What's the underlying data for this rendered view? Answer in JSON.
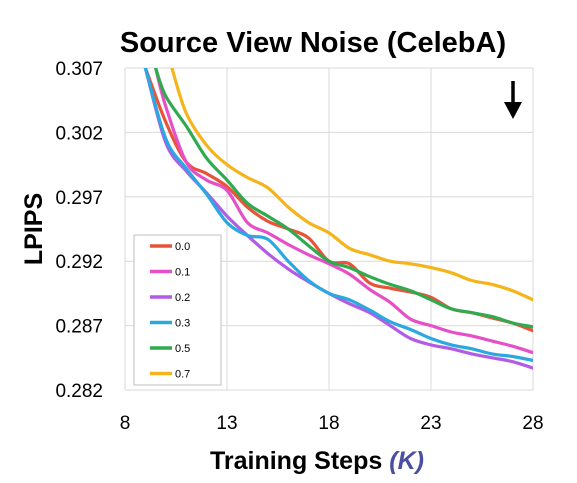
{
  "chart_data": {
    "type": "line",
    "title": "Source View Noise (CelebA)",
    "xlabel": "Training Steps",
    "xlabel_unit": "(K)",
    "ylabel": "LPIPS",
    "xlim": [
      8,
      28
    ],
    "ylim": [
      0.282,
      0.307
    ],
    "xticks": [
      "8",
      "13",
      "18",
      "23",
      "28"
    ],
    "yticks": [
      "0.307",
      "0.302",
      "0.297",
      "0.292",
      "0.287",
      "0.282"
    ],
    "grid": true,
    "legend_position": "lower-left",
    "annotation_arrow": "down",
    "series": [
      {
        "name": "0.0",
        "color": "#e8533a",
        "x": [
          9.0,
          10,
          11,
          12,
          13,
          14,
          15,
          16,
          17,
          18,
          19,
          20,
          21,
          22,
          23,
          24,
          25,
          26,
          27,
          28
        ],
        "y": [
          0.307,
          0.3028,
          0.2997,
          0.2988,
          0.2978,
          0.2962,
          0.2951,
          0.2945,
          0.2938,
          0.292,
          0.2918,
          0.2903,
          0.2899,
          0.2896,
          0.2892,
          0.2883,
          0.288,
          0.2876,
          0.2872,
          0.2866
        ]
      },
      {
        "name": "0.1",
        "color": "#e650c6",
        "x": [
          9.5,
          10,
          11,
          12,
          13,
          14,
          15,
          16,
          17,
          18,
          19,
          20,
          21,
          22,
          23,
          24,
          25,
          26,
          27,
          28
        ],
        "y": [
          0.307,
          0.304,
          0.2997,
          0.2983,
          0.2975,
          0.295,
          0.2942,
          0.2933,
          0.2925,
          0.2918,
          0.291,
          0.2898,
          0.2888,
          0.2875,
          0.287,
          0.2865,
          0.2862,
          0.2858,
          0.2854,
          0.2849
        ]
      },
      {
        "name": "0.2",
        "color": "#b05ce6",
        "x": [
          9.0,
          10,
          11,
          12,
          13,
          14,
          15,
          16,
          17,
          18,
          19,
          20,
          21,
          22,
          23,
          24,
          25,
          26,
          27,
          28
        ],
        "y": [
          0.307,
          0.3012,
          0.299,
          0.2973,
          0.2955,
          0.294,
          0.2926,
          0.2914,
          0.2904,
          0.2895,
          0.2887,
          0.288,
          0.287,
          0.286,
          0.2855,
          0.2852,
          0.2848,
          0.2845,
          0.2842,
          0.2837
        ]
      },
      {
        "name": "0.3",
        "color": "#2aa8e0",
        "x": [
          9.0,
          10,
          11,
          12,
          13,
          14,
          15,
          16,
          17,
          18,
          19,
          20,
          21,
          22,
          23,
          24,
          25,
          26,
          27,
          28
        ],
        "y": [
          0.307,
          0.3015,
          0.2992,
          0.2972,
          0.295,
          0.294,
          0.2937,
          0.292,
          0.2905,
          0.2895,
          0.289,
          0.2882,
          0.2873,
          0.2867,
          0.286,
          0.2855,
          0.2852,
          0.2848,
          0.2846,
          0.2843
        ]
      },
      {
        "name": "0.5",
        "color": "#2faa4f",
        "x": [
          9.5,
          10,
          11,
          12,
          13,
          14,
          15,
          16,
          17,
          18,
          19,
          20,
          21,
          22,
          23,
          24,
          25,
          26,
          27,
          28
        ],
        "y": [
          0.307,
          0.3048,
          0.3025,
          0.3,
          0.2983,
          0.2965,
          0.2955,
          0.2945,
          0.2932,
          0.292,
          0.2915,
          0.2908,
          0.2902,
          0.2897,
          0.289,
          0.2883,
          0.288,
          0.2877,
          0.2872,
          0.2869
        ]
      },
      {
        "name": "0.7",
        "color": "#f4b41a",
        "x": [
          10.3,
          11,
          12,
          13,
          14,
          15,
          16,
          17,
          18,
          19,
          20,
          21,
          22,
          23,
          24,
          25,
          26,
          27,
          28
        ],
        "y": [
          0.307,
          0.3035,
          0.301,
          0.2995,
          0.2985,
          0.2977,
          0.2962,
          0.295,
          0.2942,
          0.293,
          0.2925,
          0.292,
          0.2918,
          0.2915,
          0.2911,
          0.2905,
          0.2902,
          0.2897,
          0.289
        ]
      }
    ]
  }
}
